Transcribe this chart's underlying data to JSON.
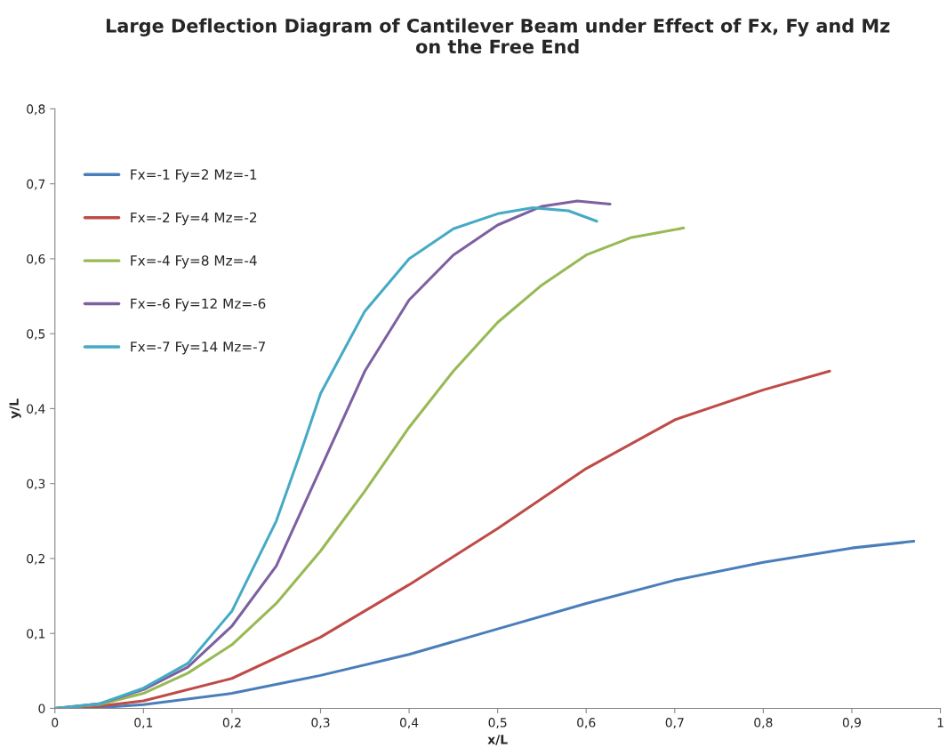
{
  "chart_data": {
    "type": "line",
    "title": "Large Deflection Diagram of Cantilever Beam under Effect of Fx, Fy and Mz\non the Free End",
    "xlabel": "x/L",
    "ylabel": "y/L",
    "xlim": [
      0,
      1
    ],
    "xticks": [
      0,
      {
        "value": 0.1,
        "label": "0,1"
      },
      {
        "value": 0.2,
        "label": "0,2"
      },
      {
        "value": 0.3,
        "label": "0,3"
      },
      {
        "value": 0.4,
        "label": "0,4"
      },
      {
        "value": 0.5,
        "label": "0,5"
      },
      {
        "value": 0.6,
        "label": "0,6"
      },
      {
        "value": 0.7,
        "label": "0,7"
      },
      {
        "value": 0.8,
        "label": "0,8"
      },
      {
        "value": 0.9,
        "label": "0,9"
      },
      1
    ],
    "ylim": [
      0,
      0.8
    ],
    "yticks": [
      0,
      {
        "value": 0.1,
        "label": "0,1"
      },
      {
        "value": 0.2,
        "label": "0,2"
      },
      {
        "value": 0.3,
        "label": "0,3"
      },
      {
        "value": 0.4,
        "label": "0,4"
      },
      {
        "value": 0.5,
        "label": "0,5"
      },
      {
        "value": 0.6,
        "label": "0,6"
      },
      {
        "value": 0.7,
        "label": "0,7"
      },
      {
        "value": 0.8,
        "label": "0,8"
      }
    ],
    "grid": false,
    "legend": "top left",
    "marker": "none",
    "series": [
      {
        "name": "Fx=-1 Fy=2 Mz=-1",
        "color": "#4a7ebb",
        "x": [
          0,
          0.05,
          0.1,
          0.2,
          0.3,
          0.4,
          0.5,
          0.6,
          0.7,
          0.8,
          0.9,
          0.97
        ],
        "values": [
          0,
          0.001,
          0.005,
          0.02,
          0.044,
          0.072,
          0.106,
          0.14,
          0.171,
          0.195,
          0.214,
          0.223
        ]
      },
      {
        "name": "Fx=-2 Fy=4 Mz=-2",
        "color": "#be4b48",
        "x": [
          0,
          0.05,
          0.1,
          0.2,
          0.3,
          0.4,
          0.5,
          0.6,
          0.7,
          0.8,
          0.875
        ],
        "values": [
          0,
          0.003,
          0.01,
          0.04,
          0.095,
          0.165,
          0.24,
          0.32,
          0.385,
          0.425,
          0.45
        ]
      },
      {
        "name": "Fx=-4 Fy=8 Mz=-4",
        "color": "#98b954",
        "x": [
          0,
          0.05,
          0.1,
          0.15,
          0.2,
          0.25,
          0.3,
          0.35,
          0.4,
          0.45,
          0.5,
          0.55,
          0.6,
          0.65,
          0.71
        ],
        "values": [
          0,
          0.005,
          0.02,
          0.047,
          0.085,
          0.14,
          0.21,
          0.29,
          0.375,
          0.45,
          0.515,
          0.565,
          0.605,
          0.628,
          0.641
        ]
      },
      {
        "name": "Fx=-6 Fy=12 Mz=-6",
        "color": "#7d60a0",
        "x": [
          0,
          0.05,
          0.1,
          0.15,
          0.2,
          0.25,
          0.3,
          0.35,
          0.4,
          0.45,
          0.5,
          0.55,
          0.59,
          0.627
        ],
        "values": [
          0,
          0.006,
          0.025,
          0.055,
          0.11,
          0.19,
          0.32,
          0.45,
          0.545,
          0.605,
          0.645,
          0.67,
          0.677,
          0.673
        ]
      },
      {
        "name": "Fx=-7 Fy=14 Mz=-7",
        "color": "#46aac5",
        "x": [
          0,
          0.05,
          0.1,
          0.15,
          0.2,
          0.25,
          0.28,
          0.3,
          0.35,
          0.4,
          0.45,
          0.5,
          0.54,
          0.58,
          0.612
        ],
        "values": [
          0,
          0.006,
          0.027,
          0.06,
          0.13,
          0.25,
          0.35,
          0.42,
          0.53,
          0.6,
          0.64,
          0.66,
          0.668,
          0.664,
          0.65
        ]
      }
    ]
  }
}
